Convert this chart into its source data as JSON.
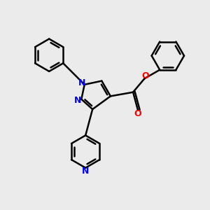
{
  "bg_color": "#ebebeb",
  "bond_color": "#000000",
  "N_color": "#0000ff",
  "O_color": "#ff0000",
  "line_width": 1.8,
  "figsize": [
    3.0,
    3.0
  ],
  "dpi": 100,
  "xlim": [
    0,
    10
  ],
  "ylim": [
    0,
    10
  ],
  "hex_r": 1.0,
  "pz_r": 0.72
}
